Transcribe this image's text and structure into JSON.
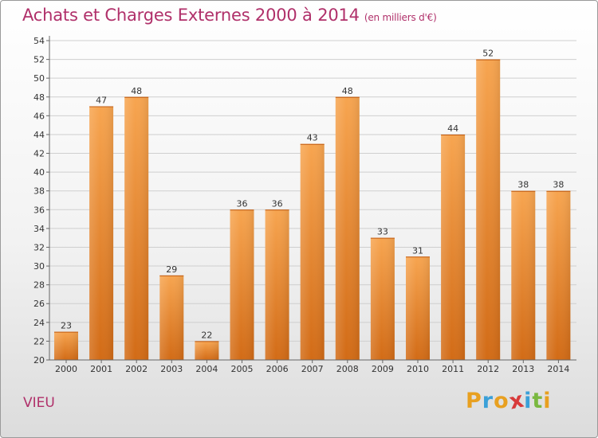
{
  "title": "Achats et Charges Externes 2000 à 2014",
  "subtitle": "(en milliers d'€)",
  "commune": "VIEU",
  "logo": {
    "letters": [
      "P",
      "r",
      "o",
      "x",
      "i",
      "t",
      "i"
    ],
    "colors": [
      "#e8a020",
      "#3aa0d8",
      "#e8a020",
      "#d83a3a",
      "#3aa0d8",
      "#7ab840",
      "#e8a020"
    ]
  },
  "colors": {
    "bar_top": "#f7a550",
    "bar_bottom": "#d26b16",
    "grid": "#cfcfcf",
    "axis": "#666666",
    "title": "#b0306a"
  },
  "chart_data": {
    "type": "bar",
    "categories": [
      "2000",
      "2001",
      "2002",
      "2003",
      "2004",
      "2005",
      "2006",
      "2007",
      "2008",
      "2009",
      "2010",
      "2011",
      "2012",
      "2013",
      "2014"
    ],
    "values": [
      23,
      47,
      48,
      29,
      22,
      36,
      36,
      43,
      48,
      33,
      31,
      44,
      52,
      38,
      38
    ],
    "ylim": [
      20,
      54
    ],
    "ytick_step": 2,
    "grid": true,
    "title": "Achats et Charges Externes 2000 à 2014",
    "xlabel": "",
    "ylabel": ""
  }
}
